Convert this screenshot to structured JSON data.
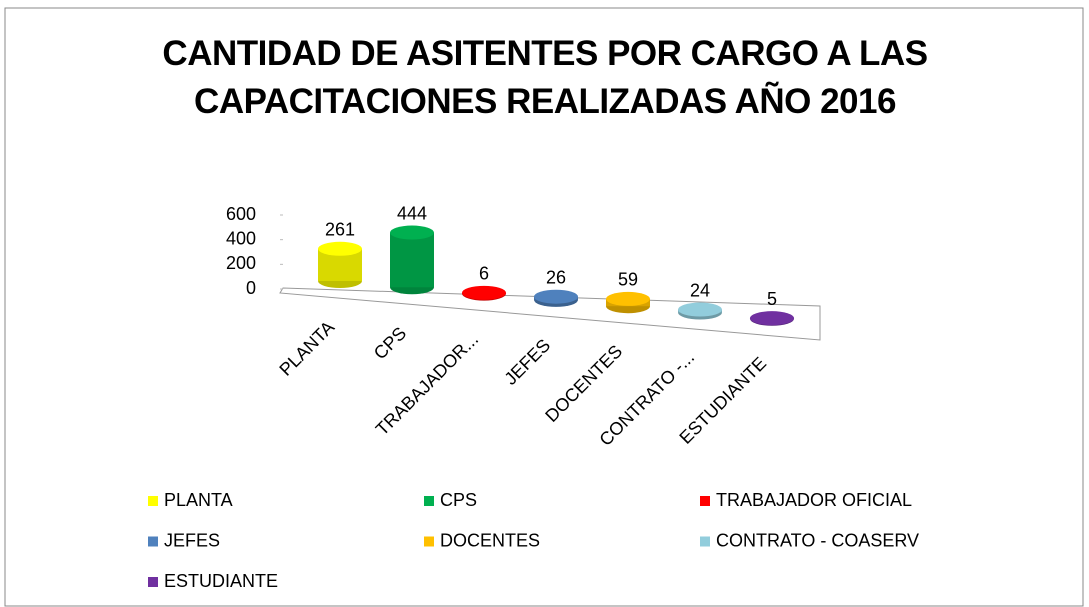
{
  "chart_data": {
    "type": "bar3d",
    "title": "CANTIDAD DE ASITENTES POR CARGO A LAS CAPACITACIONES REALIZADAS AÑO 2016",
    "categories": [
      "PLANTA",
      "CPS",
      "TRABAJADOR...",
      "JEFES",
      "DOCENTES",
      "CONTRATO -...",
      "ESTUDIANTE"
    ],
    "values": [
      261,
      444,
      6,
      26,
      59,
      24,
      5
    ],
    "colors": [
      "#ffff00",
      "#00b050",
      "#ff0000",
      "#4f81bd",
      "#ffc000",
      "#92cddc",
      "#7030a0"
    ],
    "legend_labels": [
      "PLANTA",
      "CPS",
      "TRABAJADOR OFICIAL",
      "JEFES",
      "DOCENTES",
      "CONTRATO - COASERV",
      "ESTUDIANTE"
    ],
    "ylim": [
      0,
      600
    ],
    "yticks": [
      0,
      200,
      400,
      600
    ]
  }
}
